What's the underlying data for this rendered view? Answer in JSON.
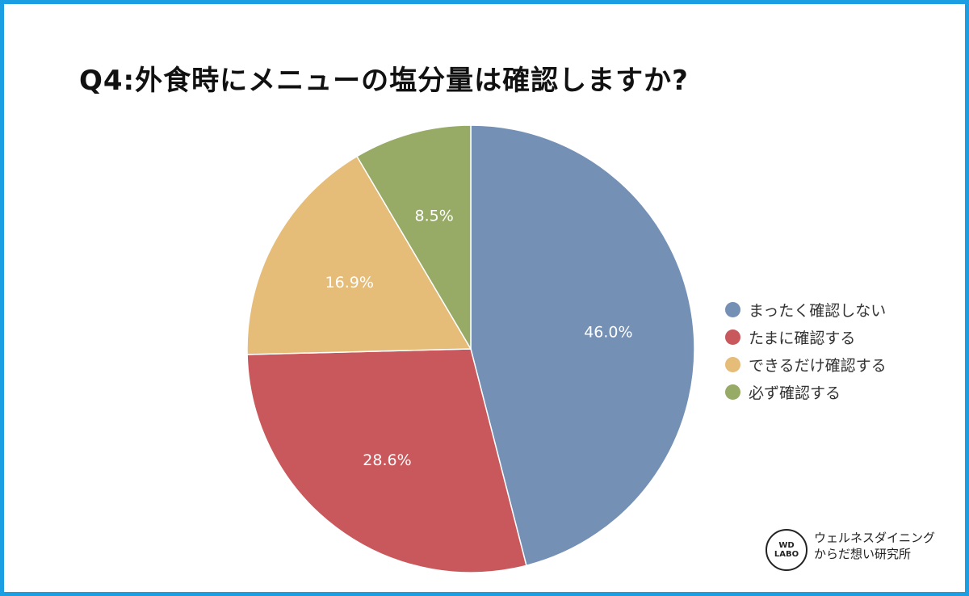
{
  "chart_data": {
    "type": "pie",
    "title": "Q4:外食時にメニューの塩分量は確認しますか?",
    "categories": [
      "まったく確認しない",
      "たまに確認する",
      "できるだけ確認する",
      "必ず確認する"
    ],
    "values": [
      46.0,
      28.6,
      16.9,
      8.5
    ],
    "labels": [
      "46.0%",
      "28.6%",
      "16.9%",
      "8.5%"
    ],
    "colors": [
      "#7490b5",
      "#c9585c",
      "#e5bc78",
      "#97ab67"
    ],
    "start": "top",
    "direction": "clockwise",
    "legend": "right"
  },
  "logo": {
    "badge_line1": "WD",
    "badge_line2": "LABO",
    "name_line1": "ウェルネスダイニング",
    "name_line2": "からだ想い研究所"
  }
}
